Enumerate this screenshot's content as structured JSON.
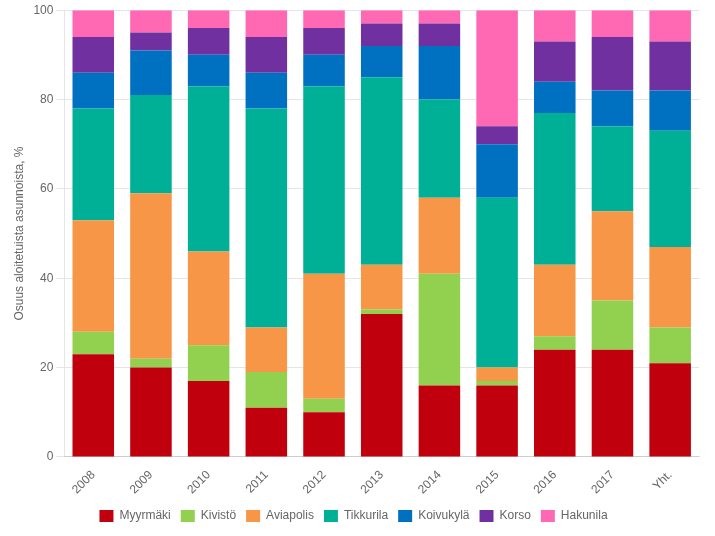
{
  "chart_data": {
    "type": "bar",
    "stacked": true,
    "categories": [
      "2008",
      "2009",
      "2010",
      "2011",
      "2012",
      "2013",
      "2014",
      "2015",
      "2016",
      "2017",
      "Yht."
    ],
    "series": [
      {
        "name": "Myyrmäki",
        "color": "#c0000c",
        "values": [
          23,
          20,
          17,
          11,
          10,
          32,
          16,
          16,
          24,
          24,
          21
        ]
      },
      {
        "name": "Kivistö",
        "color": "#92d050",
        "values": [
          5,
          2,
          8,
          8,
          3,
          1,
          25,
          1,
          3,
          11,
          8
        ]
      },
      {
        "name": "Aviapolis",
        "color": "#f79646",
        "values": [
          25,
          37,
          21,
          10,
          28,
          10,
          17,
          3,
          16,
          20,
          18
        ]
      },
      {
        "name": "Tikkurila",
        "color": "#00b096",
        "values": [
          25,
          22,
          37,
          49,
          42,
          42,
          22,
          38,
          34,
          19,
          26
        ]
      },
      {
        "name": "Koivukylä",
        "color": "#0070c0",
        "values": [
          8,
          10,
          7,
          8,
          7,
          7,
          12,
          12,
          7,
          8,
          9
        ]
      },
      {
        "name": "Korso",
        "color": "#7030a0",
        "values": [
          8,
          4,
          6,
          8,
          6,
          5,
          5,
          4,
          9,
          12,
          11
        ]
      },
      {
        "name": "Hakunila",
        "color": "#ff69b4",
        "values": [
          6,
          5,
          4,
          6,
          4,
          3,
          3,
          26,
          7,
          6,
          7
        ]
      }
    ],
    "ylabel": "Osuus aloitetuista asunnoista, %",
    "ylim": [
      0,
      100
    ],
    "yticks": [
      0,
      20,
      40,
      60,
      80,
      100
    ],
    "grid": "y",
    "legend": "bottom"
  }
}
